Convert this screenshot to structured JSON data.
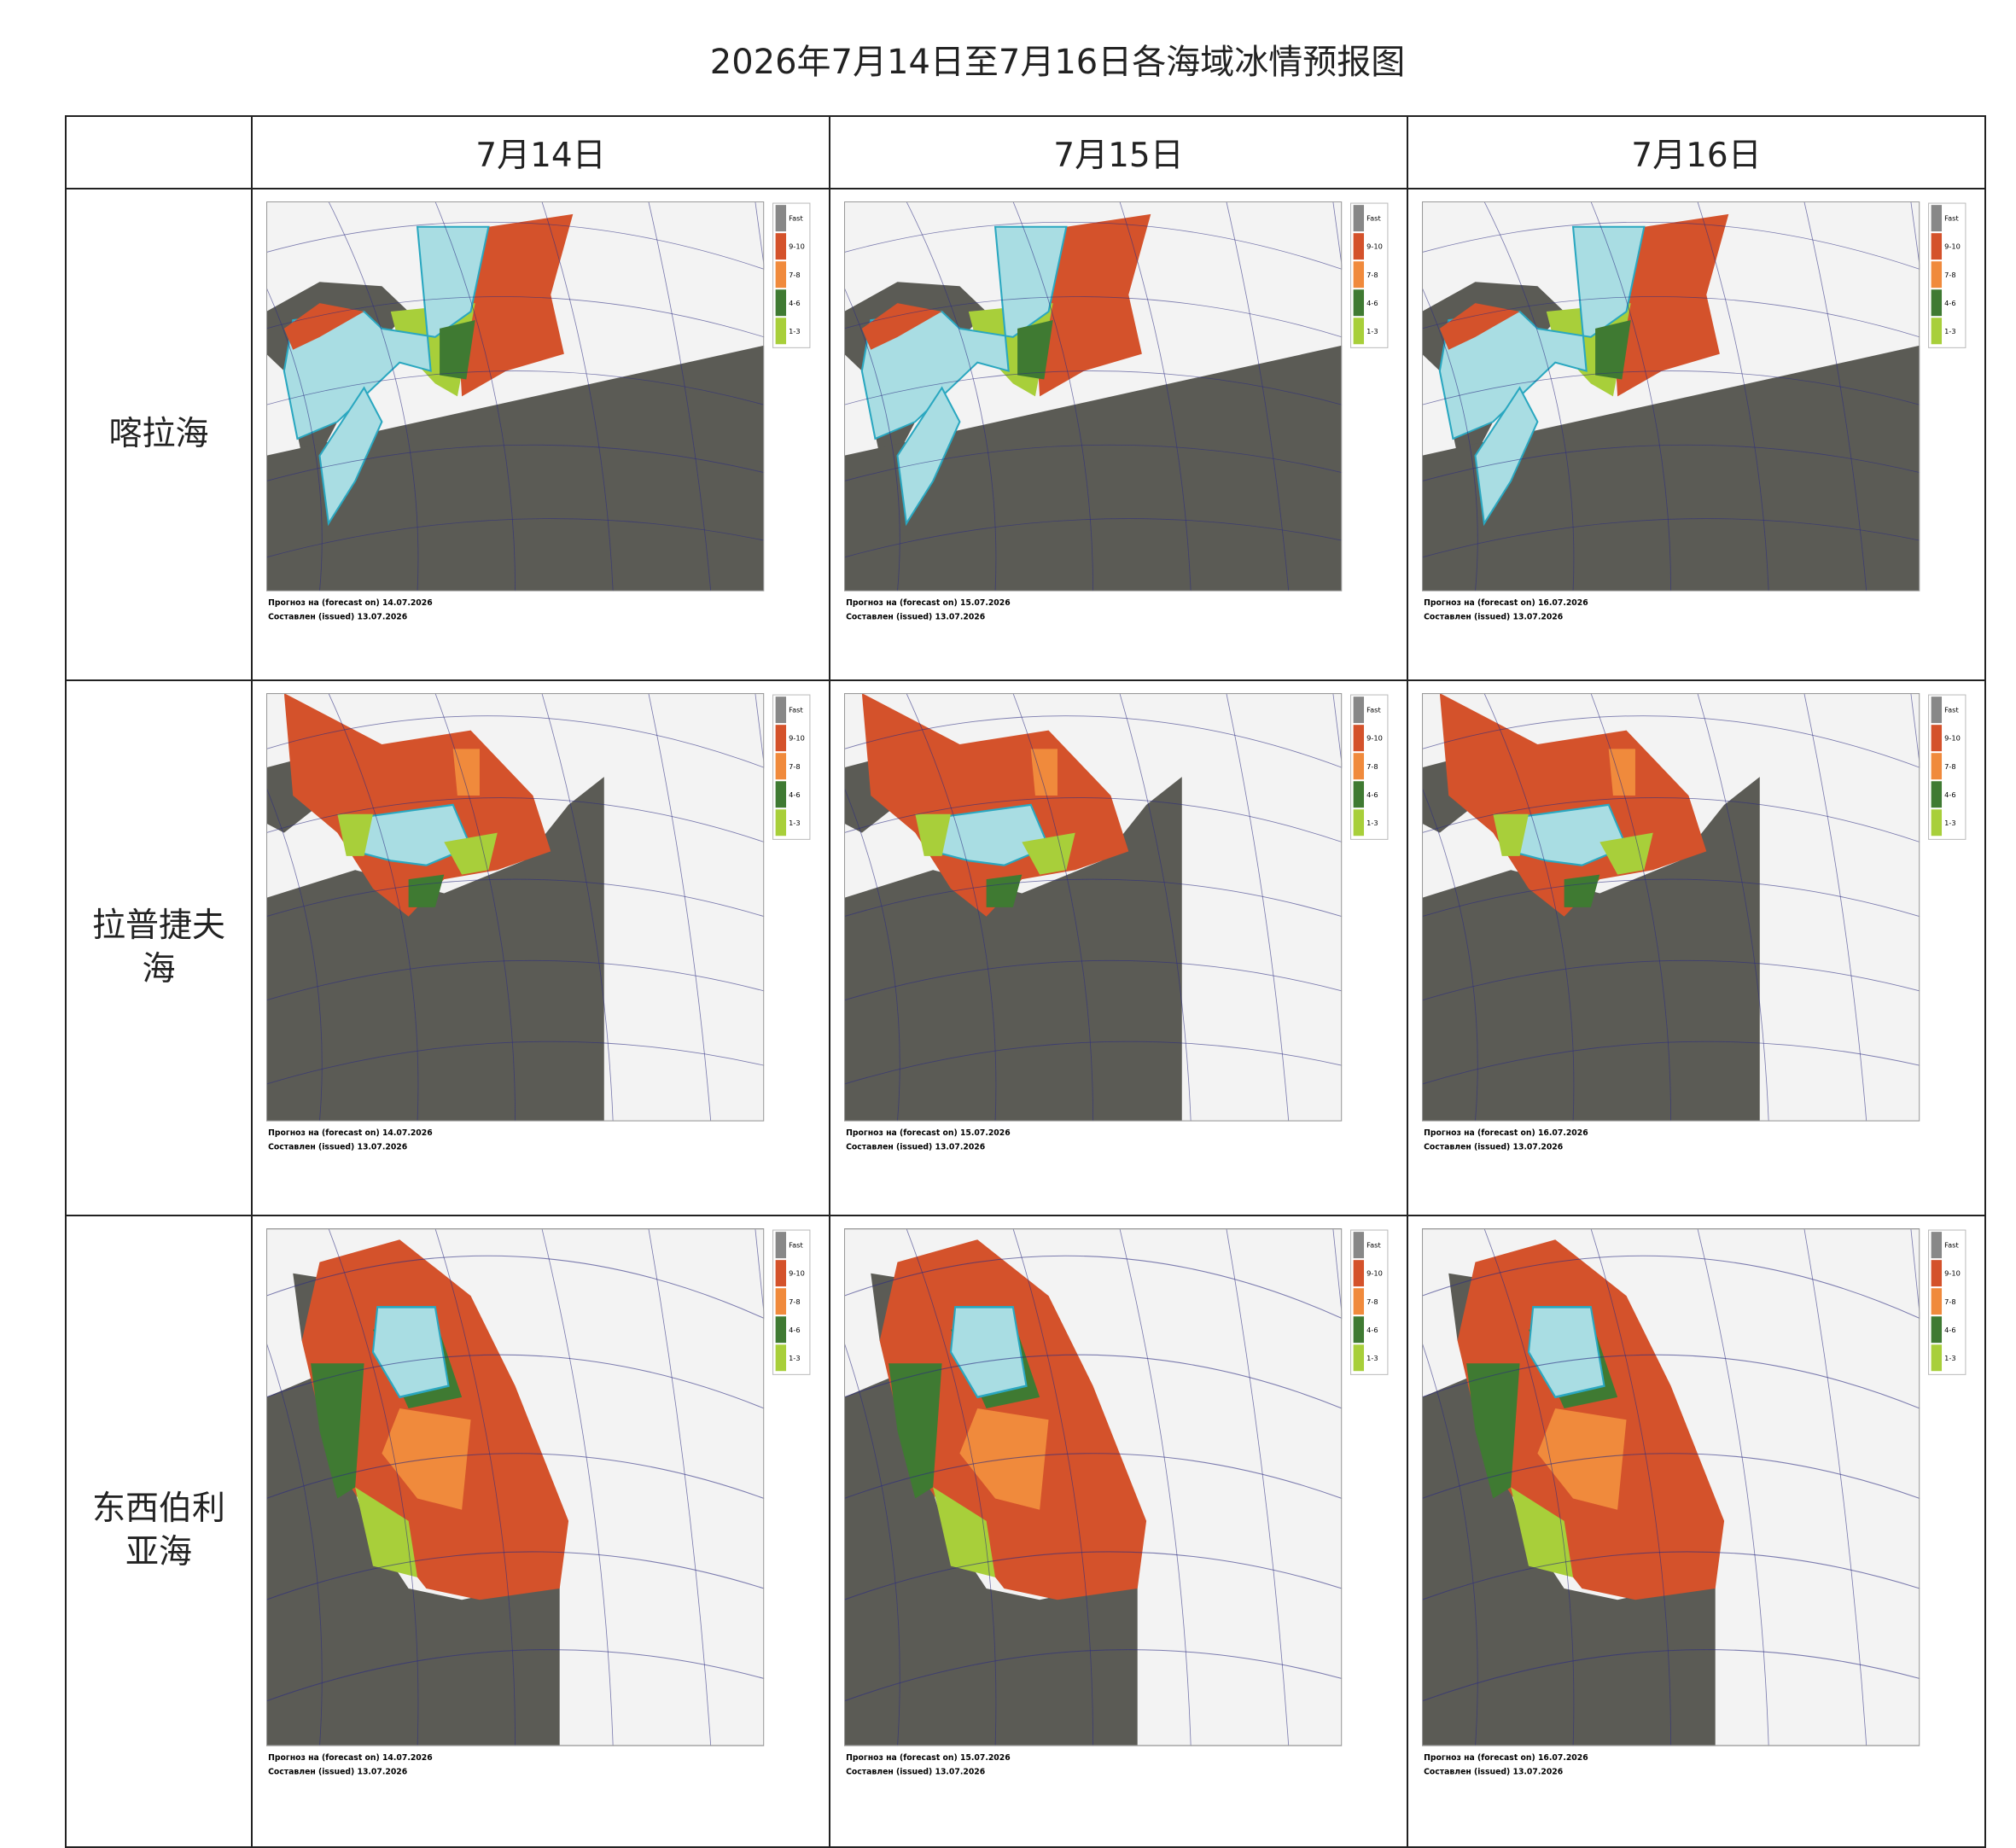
{
  "title": "2026年7月14日至7月16日各海域冰情预报图",
  "header": {
    "columns": [
      "7月14日",
      "7月15日",
      "7月16日"
    ]
  },
  "legend": [
    "Fast",
    "9-10",
    "7-8",
    "4-6",
    "1-3"
  ],
  "rows": [
    {
      "label": "喀拉海",
      "maps": [
        {
          "forecast": "Прогноз на (forecast on) 14.07.2026",
          "issued": "Составлен (issued) 13.07.2026"
        },
        {
          "forecast": "Прогноз на (forecast on) 15.07.2026",
          "issued": "Составлен (issued) 13.07.2026"
        },
        {
          "forecast": "Прогноз на (forecast on) 16.07.2026",
          "issued": "Составлен (issued) 13.07.2026"
        }
      ]
    },
    {
      "label": "拉普捷夫海",
      "maps": [
        {
          "forecast": "Прогноз на (forecast on) 14.07.2026",
          "issued": "Составлен (issued) 13.07.2026"
        },
        {
          "forecast": "Прогноз на (forecast on) 15.07.2026",
          "issued": "Составлен (issued) 13.07.2026"
        },
        {
          "forecast": "Прогноз на (forecast on) 16.07.2026",
          "issued": "Составлен (issued) 13.07.2026"
        }
      ]
    },
    {
      "label": "东西伯利亚海",
      "maps": [
        {
          "forecast": "Прогноз на (forecast on) 14.07.2026",
          "issued": "Составлен (issued) 13.07.2026"
        },
        {
          "forecast": "Прогноз на (forecast on) 15.07.2026",
          "issued": "Составлен (issued) 13.07.2026"
        },
        {
          "forecast": "Прогноз на (forecast on) 16.07.2026",
          "issued": "Составлен (issued) 13.07.2026"
        }
      ]
    }
  ]
}
